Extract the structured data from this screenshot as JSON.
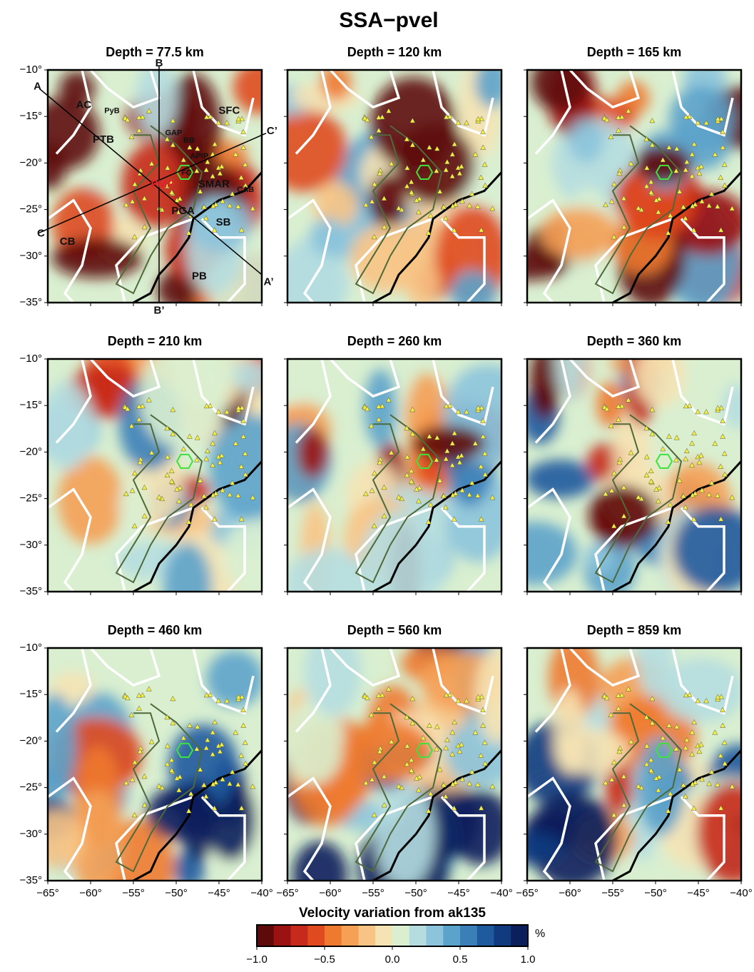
{
  "title": "SSA−pvel",
  "panels": [
    {
      "title": "Depth = 77.5 km"
    },
    {
      "title": "Depth = 120 km"
    },
    {
      "title": "Depth = 165 km"
    },
    {
      "title": "Depth = 210 km"
    },
    {
      "title": "Depth = 260 km"
    },
    {
      "title": "Depth = 360 km"
    },
    {
      "title": "Depth = 460 km"
    },
    {
      "title": "Depth = 560 km"
    },
    {
      "title": "Depth = 859 km"
    }
  ],
  "axes": {
    "xlim": [
      -65,
      -40
    ],
    "ylim": [
      -35,
      -10
    ],
    "xticks": [
      {
        "value": -65,
        "label": "−65°"
      },
      {
        "value": -60,
        "label": "−60°"
      },
      {
        "value": -55,
        "label": "−55°"
      },
      {
        "value": -50,
        "label": "−50°"
      },
      {
        "value": -45,
        "label": "−45°"
      },
      {
        "value": -40,
        "label": "−40°"
      }
    ],
    "yticks": [
      {
        "value": -10,
        "label": "−10°"
      },
      {
        "value": -15,
        "label": "−15°"
      },
      {
        "value": -20,
        "label": "−20°"
      },
      {
        "value": -25,
        "label": "−25°"
      },
      {
        "value": -30,
        "label": "−30°"
      },
      {
        "value": -35,
        "label": "−35°"
      }
    ]
  },
  "annotations": [
    "A",
    "A’",
    "B",
    "B’",
    "C",
    "C’",
    "AC",
    "PyB",
    "SFC",
    "PTB",
    "GAP",
    "BB",
    "APIP",
    "FC",
    "PMP",
    "SMAR",
    "CAB",
    "PGA",
    "SB",
    "CB",
    "PB"
  ],
  "colorbar": {
    "label": "Velocity variation from ak135",
    "unit": "%",
    "lim": [
      -1,
      1
    ],
    "ticks": [
      {
        "value": -1,
        "label": "−1.0"
      },
      {
        "value": -0.5,
        "label": "−0.5"
      },
      {
        "value": 0,
        "label": "0.0"
      },
      0.5,
      {
        "value": 1,
        "label": "1.0"
      }
    ],
    "colors": [
      "#5e0a0a",
      "#9a1212",
      "#c62a1a",
      "#e04a1f",
      "#ee7a30",
      "#f5a055",
      "#f8c485",
      "#f6e3b4",
      "#d9efd0",
      "#b5dde0",
      "#8cc4dc",
      "#5ca3cb",
      "#3a7fb8",
      "#1f5a9e",
      "#123a7e",
      "#0a1f5c"
    ]
  }
}
